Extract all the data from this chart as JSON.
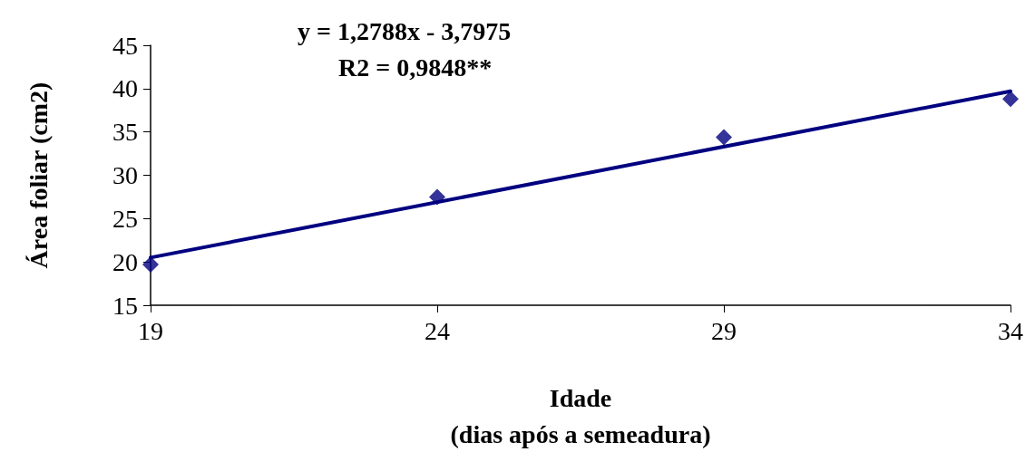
{
  "chart_data": {
    "type": "scatter",
    "xlabel": "Idade\n(dias após a semeadura)",
    "ylabel": "Área foliar (cm2)",
    "annotations": [
      "y = 1,2788x - 3,7975",
      "R2 = 0,9848**"
    ],
    "xlim": [
      19,
      34
    ],
    "xticks": [
      19,
      24,
      29,
      34
    ],
    "ylim": [
      15,
      45
    ],
    "yticks": [
      15,
      20,
      25,
      30,
      35,
      40,
      45
    ],
    "grid": false,
    "marker": "diamond",
    "series": [
      {
        "color": "#000080",
        "x": [
          19,
          24,
          29,
          34
        ],
        "values": [
          19.7,
          27.5,
          34.4,
          38.8
        ]
      },
      {
        "type": "line",
        "color": "#000080",
        "x": [
          19,
          34
        ],
        "values": [
          20.5,
          39.7
        ],
        "marker": "none",
        "line_style": "solid"
      }
    ]
  }
}
